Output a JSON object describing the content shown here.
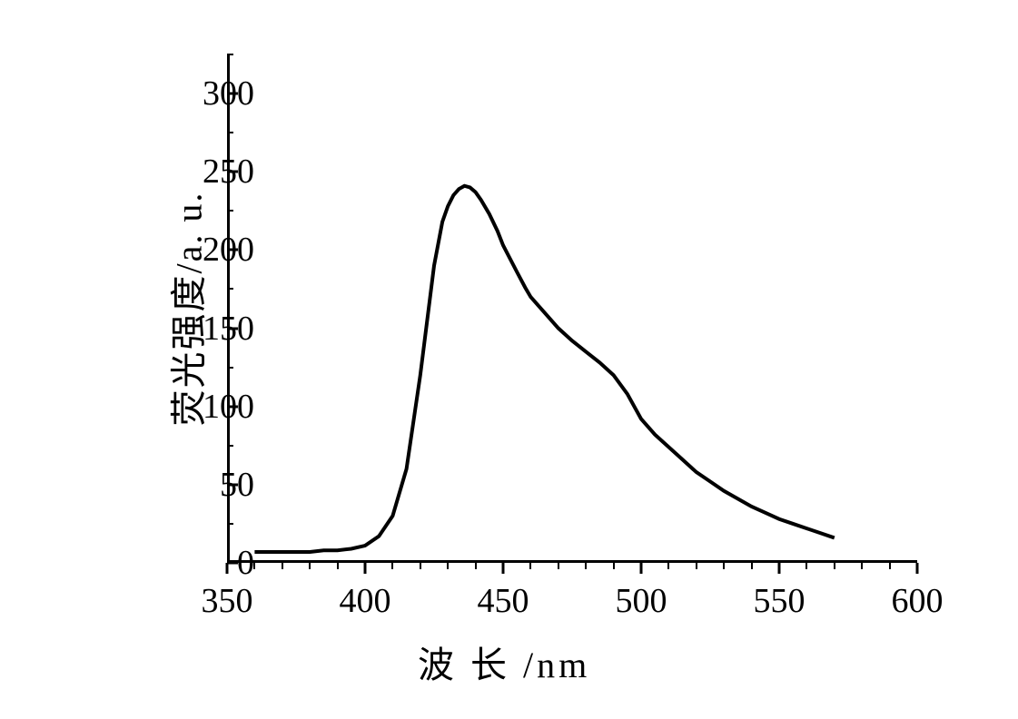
{
  "chart": {
    "type": "line",
    "xlabel": "波 长 /nm",
    "ylabel": "荧光强度/a. u.",
    "xlabel_fontsize": 40,
    "ylabel_fontsize": 40,
    "tick_fontsize": 38,
    "line_color": "#000000",
    "line_width": 4,
    "background_color": "#ffffff",
    "axis_color": "#000000",
    "axis_width": 3,
    "xlim": [
      350,
      600
    ],
    "ylim": [
      0,
      325
    ],
    "x_ticks": [
      350,
      400,
      450,
      500,
      550,
      600
    ],
    "y_ticks": [
      0,
      50,
      100,
      150,
      200,
      250,
      300
    ],
    "x_minor_step": 10,
    "y_minor_step": 25,
    "data": {
      "x": [
        360,
        365,
        370,
        375,
        380,
        385,
        390,
        395,
        400,
        405,
        410,
        415,
        420,
        425,
        428,
        430,
        432,
        434,
        436,
        438,
        440,
        442,
        445,
        448,
        450,
        455,
        458,
        460,
        463,
        465,
        470,
        475,
        480,
        485,
        490,
        495,
        500,
        505,
        510,
        515,
        520,
        525,
        530,
        535,
        540,
        545,
        550,
        555,
        560,
        565,
        570
      ],
      "y": [
        7,
        7,
        7,
        7,
        7,
        8,
        8,
        9,
        11,
        17,
        30,
        60,
        120,
        190,
        218,
        228,
        235,
        239,
        241,
        240,
        237,
        232,
        223,
        212,
        203,
        186,
        176,
        170,
        164,
        160,
        150,
        142,
        135,
        128,
        120,
        108,
        92,
        82,
        74,
        66,
        58,
        52,
        46,
        41,
        36,
        32,
        28,
        25,
        22,
        19,
        16
      ]
    }
  }
}
